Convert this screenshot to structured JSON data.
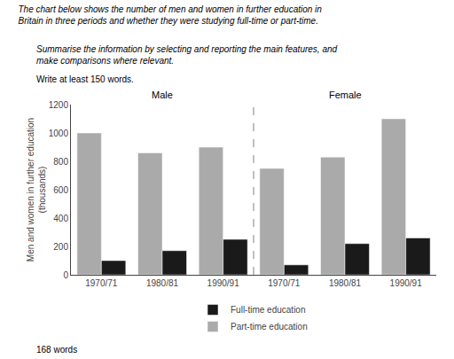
{
  "chart_data": {
    "type": "bar",
    "title": "The chart below shows the number of men and women in further education in\nBritain in three periods and whether they were studying full-time or part-time.",
    "subtitle": "Summarise the information by selecting and reporting the main features, and\nmake comparisons where relevant.",
    "instruction": "Write at least 150 words.",
    "footer": "168 words",
    "categories": [
      "1970/71",
      "1980/81",
      "1990/91",
      "1970/71",
      "1980/81",
      "1990/91"
    ],
    "groups": [
      "Male",
      "Female"
    ],
    "series": [
      {
        "name": "Part-time education",
        "color": "#aaaaaa",
        "values": [
          1000,
          860,
          900,
          750,
          830,
          1100
        ]
      },
      {
        "name": "Full-time education",
        "color": "#1a1a1a",
        "values": [
          100,
          170,
          250,
          70,
          220,
          260
        ]
      }
    ],
    "ylabel": "Men and women in further education\n(thousands)",
    "ylim": [
      0,
      1200
    ],
    "yticks": [
      0,
      200,
      400,
      600,
      800,
      1000,
      1200
    ],
    "grid": false
  }
}
